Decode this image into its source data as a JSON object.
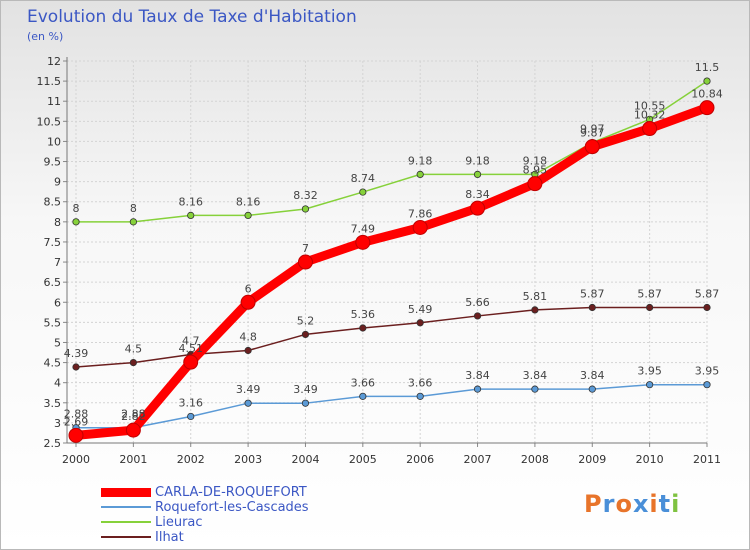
{
  "header": {
    "title": "Evolution du Taux de Taxe d'Habitation",
    "unit": "(en %)"
  },
  "logo": {
    "text": "Proxiti",
    "colors": [
      "#e8742a",
      "#4a8fd8",
      "#e8742a",
      "#4a8fd8",
      "#e8742a",
      "#4a8fd8",
      "#7fc241"
    ]
  },
  "chart_data": {
    "type": "line",
    "x": [
      "2000",
      "2001",
      "2002",
      "2003",
      "2004",
      "2005",
      "2006",
      "2007",
      "2008",
      "2009",
      "2010",
      "2011"
    ],
    "ylim": [
      2.5,
      12
    ],
    "yticks": [
      "2.5",
      "3",
      "3.5",
      "4",
      "4.5",
      "5",
      "5.5",
      "6",
      "6.5",
      "7",
      "7.5",
      "8",
      "8.5",
      "9",
      "9.5",
      "10",
      "10.5",
      "11",
      "11.5",
      "12"
    ],
    "grid": true,
    "legend_position": "bottom-left",
    "series": [
      {
        "name": "Ilhat",
        "color": "#6b1f1f",
        "values": [
          4.39,
          4.5,
          4.7,
          4.8,
          5.2,
          5.36,
          5.49,
          5.66,
          5.81,
          5.87,
          5.87,
          5.87
        ],
        "labels": [
          "4.39",
          "4.5",
          "4.7",
          "4.8",
          "5.2",
          "5.36",
          "5.49",
          "5.66",
          "5.81",
          "5.87",
          "5.87",
          "5.87"
        ]
      },
      {
        "name": "Roquefort-les-Cascades",
        "color": "#5b9ad6",
        "values": [
          2.88,
          2.88,
          3.16,
          3.49,
          3.49,
          3.66,
          3.66,
          3.84,
          3.84,
          3.84,
          3.95,
          3.95
        ],
        "labels": [
          "2.88",
          "2.88",
          "3.16",
          "3.49",
          "3.49",
          "3.66",
          "3.66",
          "3.84",
          "3.84",
          "3.84",
          "3.95",
          "3.95"
        ]
      },
      {
        "name": "Lieurac",
        "color": "#86d13a",
        "values": [
          8,
          8,
          8.16,
          8.16,
          8.32,
          8.74,
          9.18,
          9.18,
          9.18,
          9.97,
          10.55,
          11.5
        ],
        "labels": [
          "8",
          "8",
          "8.16",
          "8.16",
          "8.32",
          "8.74",
          "9.18",
          "9.18",
          "9.18",
          "9.97",
          "10.55",
          "11.5"
        ]
      },
      {
        "name": "CARLA-DE-ROQUEFORT",
        "color": "#ff0000",
        "values": [
          2.69,
          2.82,
          4.51,
          6,
          7,
          7.49,
          7.86,
          8.34,
          8.95,
          9.87,
          10.32,
          10.84
        ],
        "labels": [
          "2.69",
          "2.82",
          "4.51",
          "6",
          "7",
          "7.49",
          "7.86",
          "8.34",
          "8.95",
          "9.87",
          "10.32",
          "10.84"
        ]
      }
    ],
    "legend_order": [
      "CARLA-DE-ROQUEFORT",
      "Roquefort-les-Cascades",
      "Lieurac",
      "Ilhat"
    ]
  }
}
